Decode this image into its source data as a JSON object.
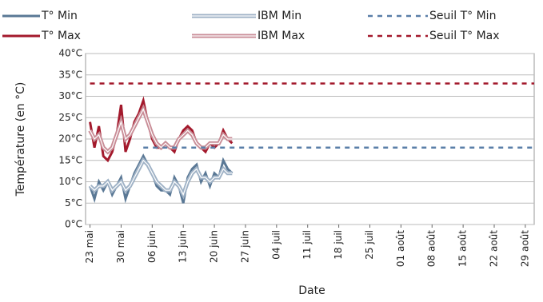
{
  "chart_data": {
    "type": "line",
    "x_label": "Date",
    "y_label": "Température (en °C)",
    "x": [
      "05-23",
      "05-24",
      "05-25",
      "05-26",
      "05-27",
      "05-28",
      "05-29",
      "05-30",
      "05-31",
      "06-01",
      "06-02",
      "06-03",
      "06-04",
      "06-05",
      "06-06",
      "06-07",
      "06-08",
      "06-09",
      "06-10",
      "06-11",
      "06-12",
      "06-13",
      "06-14",
      "06-15",
      "06-16",
      "06-17",
      "06-18",
      "06-19",
      "06-20",
      "06-21",
      "06-22",
      "06-23",
      "06-24"
    ],
    "xlim": [
      "05-22",
      "08-31"
    ],
    "xticks": [
      {
        "value": "05-23",
        "label": "23 mai"
      },
      {
        "value": "05-30",
        "label": "30 mai"
      },
      {
        "value": "06-06",
        "label": "06 juin"
      },
      {
        "value": "06-13",
        "label": "13 juin"
      },
      {
        "value": "06-20",
        "label": "20 juin"
      },
      {
        "value": "06-27",
        "label": "27 juin"
      },
      {
        "value": "07-04",
        "label": "04 juil"
      },
      {
        "value": "07-11",
        "label": "11 juil"
      },
      {
        "value": "07-18",
        "label": "18 juil"
      },
      {
        "value": "07-25",
        "label": "25 juil"
      },
      {
        "value": "08-01",
        "label": "01 août"
      },
      {
        "value": "08-08",
        "label": "08 août"
      },
      {
        "value": "08-15",
        "label": "15 août"
      },
      {
        "value": "08-22",
        "label": "22 août"
      },
      {
        "value": "08-29",
        "label": "29 août"
      }
    ],
    "ylim": [
      0,
      40
    ],
    "yticks": [
      {
        "value": 0,
        "label": "0°C"
      },
      {
        "value": 5,
        "label": "5°C"
      },
      {
        "value": 10,
        "label": "10°C"
      },
      {
        "value": 15,
        "label": "15°C"
      },
      {
        "value": 20,
        "label": "20°C"
      },
      {
        "value": 25,
        "label": "25°C"
      },
      {
        "value": 30,
        "label": "30°C"
      },
      {
        "value": 35,
        "label": "35°C"
      },
      {
        "value": 40,
        "label": "40°C"
      }
    ],
    "grid": true,
    "series": [
      {
        "name": "T° Min",
        "color": "#5a7895",
        "style": "solid",
        "values": [
          9,
          6,
          10,
          8,
          10,
          7,
          9,
          11,
          6,
          9,
          12,
          14,
          16,
          14,
          12,
          9,
          8,
          8,
          7,
          11,
          9,
          5,
          11,
          13,
          14,
          10,
          12,
          9,
          12,
          11,
          15,
          13,
          12
        ]
      },
      {
        "name": "T° Max",
        "color": "#a3192c",
        "style": "solid",
        "values": [
          24,
          18,
          23,
          16,
          15,
          17,
          21,
          28,
          17,
          20,
          24,
          26,
          29,
          24,
          20,
          18,
          18,
          19,
          18,
          17,
          20,
          22,
          23,
          22,
          19,
          18,
          17,
          19,
          18,
          19,
          22,
          20,
          19
        ]
      },
      {
        "name": "IBM Min",
        "color": "#9fb2c6",
        "style": "double",
        "values": [
          9,
          8,
          9,
          9,
          10,
          8,
          9,
          10,
          8,
          9,
          11,
          13,
          15,
          14,
          12,
          10,
          9,
          8,
          8,
          10,
          9,
          7,
          10,
          12,
          13,
          11,
          11,
          10,
          11,
          11,
          13,
          12,
          12
        ]
      },
      {
        "name": "IBM Max",
        "color": "#c98d97",
        "style": "double",
        "values": [
          22,
          20,
          21,
          18,
          17,
          18,
          21,
          24,
          20,
          21,
          23,
          25,
          27,
          24,
          21,
          19,
          18,
          19,
          18,
          18,
          20,
          21,
          22,
          21,
          19,
          18,
          18,
          19,
          19,
          19,
          21,
          20,
          20
        ]
      },
      {
        "name": "Seuil T° Min",
        "color": "#5a7fa8",
        "style": "dashed",
        "x": [
          "06-04",
          "08-31"
        ],
        "values": [
          18,
          18
        ]
      },
      {
        "name": "Seuil T° Max",
        "color": "#a3192c",
        "style": "dashed",
        "x": [
          "05-23",
          "08-31"
        ],
        "values": [
          33,
          33
        ]
      }
    ]
  }
}
